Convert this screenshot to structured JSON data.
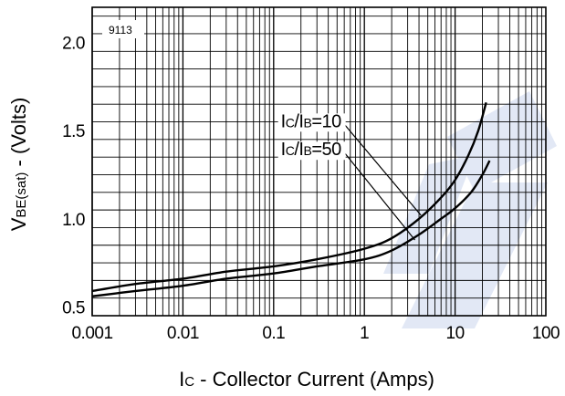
{
  "chart_data": {
    "type": "line",
    "code_label": "9113",
    "xlabel": {
      "prefix": "I",
      "sub": "C",
      "rest": " - Collector Current (Amps)"
    },
    "ylabel": {
      "prefix": "V",
      "sub": "BE(sat)",
      "rest": " - (Volts)"
    },
    "x_scale": "log",
    "xlim": [
      0.001,
      100
    ],
    "ylim": [
      0.45,
      2.2
    ],
    "x_ticks": [
      {
        "value": 0.001,
        "label": "0.001"
      },
      {
        "value": 0.01,
        "label": "0.01"
      },
      {
        "value": 0.1,
        "label": "0.1"
      },
      {
        "value": 1,
        "label": "1"
      },
      {
        "value": 10,
        "label": "10"
      },
      {
        "value": 100,
        "label": "100"
      }
    ],
    "y_ticks": [
      {
        "value": 0.5,
        "label": "0.5"
      },
      {
        "value": 1.0,
        "label": "1.0"
      },
      {
        "value": 1.5,
        "label": "1.5"
      },
      {
        "value": 2.0,
        "label": "2.0"
      }
    ],
    "y_minor_step": 0.1,
    "grid": true,
    "series": [
      {
        "label": {
          "i1": "I",
          "s1": "C",
          "mid": "/I",
          "s2": "B",
          "rest": "=10"
        },
        "x": [
          0.001,
          0.003,
          0.01,
          0.03,
          0.1,
          0.3,
          1,
          2,
          4,
          7,
          10,
          14,
          18,
          22
        ],
        "y": [
          0.59,
          0.63,
          0.66,
          0.7,
          0.73,
          0.77,
          0.83,
          0.89,
          1.0,
          1.12,
          1.22,
          1.36,
          1.5,
          1.66
        ]
      },
      {
        "label": {
          "i1": "I",
          "s1": "C",
          "mid": "/I",
          "s2": "B",
          "rest": "=50"
        },
        "x": [
          0.001,
          0.003,
          0.01,
          0.03,
          0.1,
          0.3,
          1,
          2,
          4,
          7,
          10,
          15,
          20,
          24
        ],
        "y": [
          0.56,
          0.59,
          0.62,
          0.66,
          0.69,
          0.73,
          0.77,
          0.82,
          0.91,
          1.0,
          1.06,
          1.15,
          1.25,
          1.33
        ]
      }
    ],
    "annotations": [
      {
        "series": 0,
        "text_at": [
          0.12,
          1.52
        ],
        "point_at": [
          4.2,
          1.02
        ]
      },
      {
        "series": 1,
        "text_at": [
          0.12,
          1.36
        ],
        "point_at": [
          3.6,
          0.88
        ]
      }
    ]
  }
}
